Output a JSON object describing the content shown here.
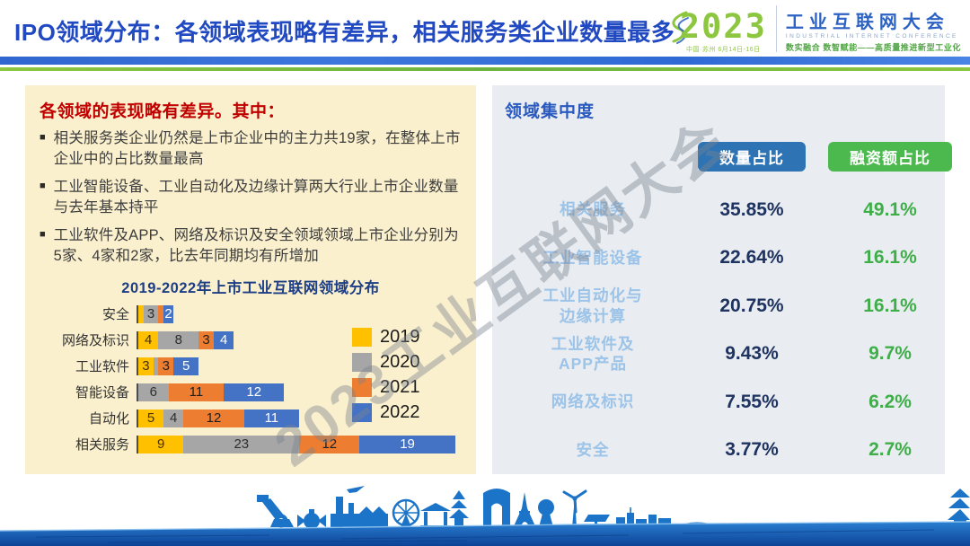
{
  "header": {
    "title": "IPO领域分布：各领域表现略有差异，相关服务类企业数量最多",
    "logo": {
      "year": "2023",
      "venue": "中国·苏州 6月14日-16日",
      "name_cn": "工业互联网大会",
      "name_en": "INDUSTRIAL INTERNET CONFERENCE",
      "slogan": "数实融合 数智赋能——高质量推进新型工业化"
    }
  },
  "left_panel": {
    "heading": "各领域的表现略有差异。其中：",
    "bullets": [
      "相关服务类企业仍然是上市企业中的主力共19家，在整体上市企业中的占比数量最高",
      "工业智能设备、工业自动化及边缘计算两大行业上市企业数量与去年基本持平",
      "工业软件及APP、网络及标识及安全领域领域上市企业分别为5家、4家和2家，比去年同期均有所增加"
    ]
  },
  "chart_data": {
    "type": "bar",
    "orientation": "horizontal",
    "stacked": true,
    "title": "2019-2022年上市工业互联网领域分布",
    "categories": [
      "安全",
      "网络及标识",
      "工业软件",
      "智能设备",
      "自动化",
      "相关服务"
    ],
    "series": [
      {
        "name": "2019",
        "color": "#FFC000",
        "label_color": "#4a3200",
        "values": [
          1,
          4,
          3,
          0,
          5,
          9
        ],
        "labels": [
          "",
          "4",
          "3",
          "",
          "5",
          "9"
        ]
      },
      {
        "name": "2020",
        "color": "#A6A6A6",
        "label_color": "#2e2e2e",
        "values": [
          3,
          8,
          1,
          6,
          4,
          23
        ],
        "labels": [
          "3",
          "8",
          "",
          "6",
          "4",
          "23"
        ]
      },
      {
        "name": "2021",
        "color": "#ED7D31",
        "label_color": "#1f1f1f",
        "values": [
          1,
          3,
          3,
          11,
          12,
          12
        ],
        "labels": [
          "",
          "3",
          "3",
          "11",
          "12",
          "12"
        ]
      },
      {
        "name": "2022",
        "color": "#4472C4",
        "label_color": "#ffffff",
        "values": [
          2,
          4,
          5,
          12,
          11,
          19
        ],
        "labels": [
          "2",
          "4",
          "5",
          "12",
          "11",
          "19"
        ]
      }
    ],
    "legend_position": "right-inside",
    "x_axis": "hidden"
  },
  "right_panel": {
    "heading": "领域集中度",
    "columns": [
      {
        "label": "数量占比",
        "color": "#2e74b5"
      },
      {
        "label": "融资额占比",
        "color": "#4cb94e"
      }
    ],
    "rows": [
      {
        "label": "相关服务",
        "count_share": "35.85%",
        "funding_share": "49.1%"
      },
      {
        "label": "工业智能设备",
        "count_share": "22.64%",
        "funding_share": "16.1%"
      },
      {
        "label": "工业自动化与\n边缘计算",
        "count_share": "20.75%",
        "funding_share": "16.1%"
      },
      {
        "label": "工业软件及\nAPP产品",
        "count_share": "9.43%",
        "funding_share": "9.7%"
      },
      {
        "label": "网络及标识",
        "count_share": "7.55%",
        "funding_share": "6.2%"
      },
      {
        "label": "安全",
        "count_share": "3.77%",
        "funding_share": "2.7%"
      }
    ]
  },
  "watermark": "2023工业互联网大会",
  "colors": {
    "title_blue": "#2149c2",
    "panel_left_bg": "#fbf0cd",
    "panel_right_bg": "#e9edf1",
    "heading_red": "#c00000",
    "count_navy": "#1f3360",
    "funding_green": "#3fae49",
    "row_label_blue": "#9cc3e8",
    "skyline_blue": "#1b74c8"
  }
}
